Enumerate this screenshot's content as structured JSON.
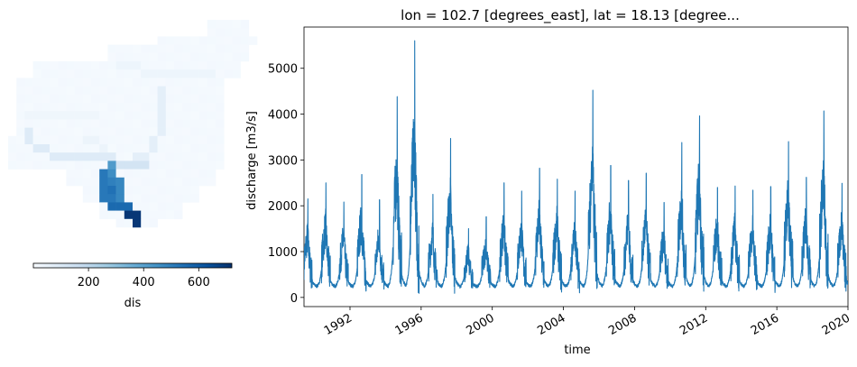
{
  "figure": {
    "map_panel": {
      "colorbar": {
        "label": "dis",
        "ticks": [
          200,
          400,
          600
        ],
        "range": [
          0,
          720
        ],
        "colormap": [
          "#f7fbff",
          "#deebf7",
          "#c6dbef",
          "#9ecae1",
          "#6baed6",
          "#4292c6",
          "#2171b5",
          "#08519c",
          "#08306b"
        ]
      }
    }
  },
  "chart_data": {
    "type": "line",
    "title": "lon = 102.7 [degrees_east], lat = 18.13 [degree...",
    "xlabel": "time",
    "ylabel": "discharge [m3/s]",
    "xlim": [
      "1989-06-01",
      "2020-01-01"
    ],
    "ylim": [
      -200,
      5900
    ],
    "x_ticks": [
      "1992",
      "1996",
      "2000",
      "2004",
      "2008",
      "2012",
      "2016",
      "2020"
    ],
    "y_ticks": [
      0,
      1000,
      2000,
      3000,
      4000,
      5000
    ],
    "line_color": "#1f77b4",
    "series": [
      {
        "annual_peaks": [
          {
            "x": "1989-08-20",
            "y": 2150
          },
          {
            "x": "1990-08-25",
            "y": 2500
          },
          {
            "x": "1991-08-28",
            "y": 2080
          },
          {
            "x": "1992-08-30",
            "y": 2680
          },
          {
            "x": "1993-08-30",
            "y": 2130
          },
          {
            "x": "1994-08-28",
            "y": 4380
          },
          {
            "x": "1995-08-22",
            "y": 5600
          },
          {
            "x": "1996-08-30",
            "y": 2250
          },
          {
            "x": "1997-08-28",
            "y": 3470
          },
          {
            "x": "1998-09-01",
            "y": 1500
          },
          {
            "x": "1999-08-30",
            "y": 1760
          },
          {
            "x": "2000-08-30",
            "y": 2500
          },
          {
            "x": "2001-08-28",
            "y": 2320
          },
          {
            "x": "2002-08-30",
            "y": 2820
          },
          {
            "x": "2003-08-28",
            "y": 2580
          },
          {
            "x": "2004-08-28",
            "y": 2320
          },
          {
            "x": "2005-08-28",
            "y": 4520
          },
          {
            "x": "2006-08-30",
            "y": 2880
          },
          {
            "x": "2007-08-30",
            "y": 2550
          },
          {
            "x": "2008-08-28",
            "y": 2710
          },
          {
            "x": "2009-08-30",
            "y": 2070
          },
          {
            "x": "2010-08-28",
            "y": 3380
          },
          {
            "x": "2011-08-28",
            "y": 3960
          },
          {
            "x": "2012-08-30",
            "y": 2400
          },
          {
            "x": "2013-08-28",
            "y": 2430
          },
          {
            "x": "2014-08-28",
            "y": 2340
          },
          {
            "x": "2015-08-30",
            "y": 2420
          },
          {
            "x": "2016-08-28",
            "y": 3400
          },
          {
            "x": "2017-08-30",
            "y": 2620
          },
          {
            "x": "2018-08-25",
            "y": 4070
          },
          {
            "x": "2019-09-01",
            "y": 2490
          }
        ],
        "baseflow": 230
      }
    ]
  }
}
